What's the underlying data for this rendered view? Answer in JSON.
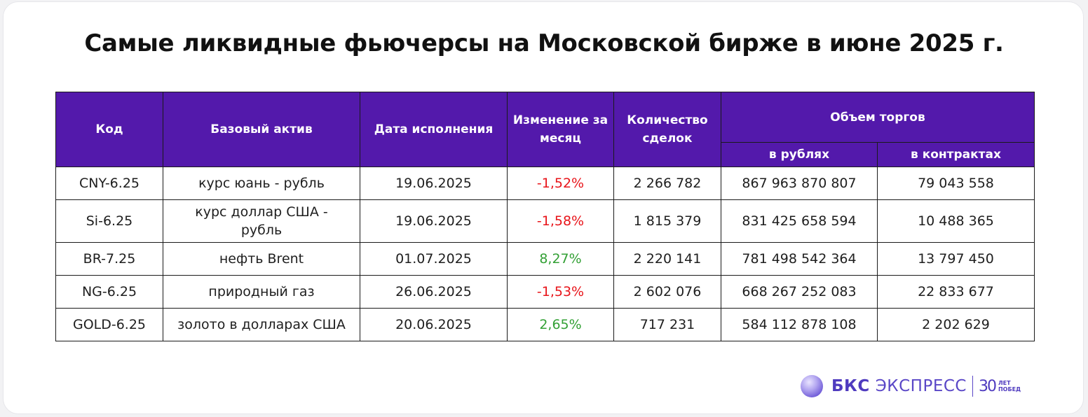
{
  "title": "Самые ликвидные фьючерсы на Московской бирже в июне 2025 г.",
  "table": {
    "headers": {
      "code": "Код",
      "asset": "Базовый актив",
      "date": "Дата исполнения",
      "change": "Изменение за месяц",
      "deals": "Количество сделок",
      "volume": "Объем торгов",
      "volume_rub": "в рублях",
      "volume_contracts": "в контрактах"
    },
    "rows": [
      {
        "code": "CNY-6.25",
        "asset": "курс юань - рубль",
        "date": "19.06.2025",
        "change": "-1,52%",
        "deals": "2 266 782",
        "volume_rub": "867 963 870 807",
        "volume_contracts": "79 043 558"
      },
      {
        "code": "Si-6.25",
        "asset": "курс доллар США - рубль",
        "date": "19.06.2025",
        "change": "-1,58%",
        "deals": "1 815 379",
        "volume_rub": "831 425 658 594",
        "volume_contracts": "10 488 365"
      },
      {
        "code": "BR-7.25",
        "asset": "нефть Brent",
        "date": "01.07.2025",
        "change": "8,27%",
        "deals": "2 220 141",
        "volume_rub": "781 498 542 364",
        "volume_contracts": "13 797 450"
      },
      {
        "code": "NG-6.25",
        "asset": "природный газ",
        "date": "26.06.2025",
        "change": "-1,53%",
        "deals": "2 602 076",
        "volume_rub": "668 267 252 083",
        "volume_contracts": "22 833 677"
      },
      {
        "code": "GOLD-6.25",
        "asset": "золото в долларах США",
        "date": "20.06.2025",
        "change": "2,65%",
        "deals": "717 231",
        "volume_rub": "584 112 878 108",
        "volume_contracts": "2 202 629"
      }
    ]
  },
  "colors": {
    "header_bg": "#5319ab",
    "negative": "#e8141a",
    "positive": "#33a035",
    "brand": "#4f3bbf"
  },
  "logo": {
    "brand": "БКС",
    "product": "ЭКСПРЕСС",
    "years": "30",
    "word1": "ЛЕТ",
    "word2": "ПОБЕД"
  }
}
